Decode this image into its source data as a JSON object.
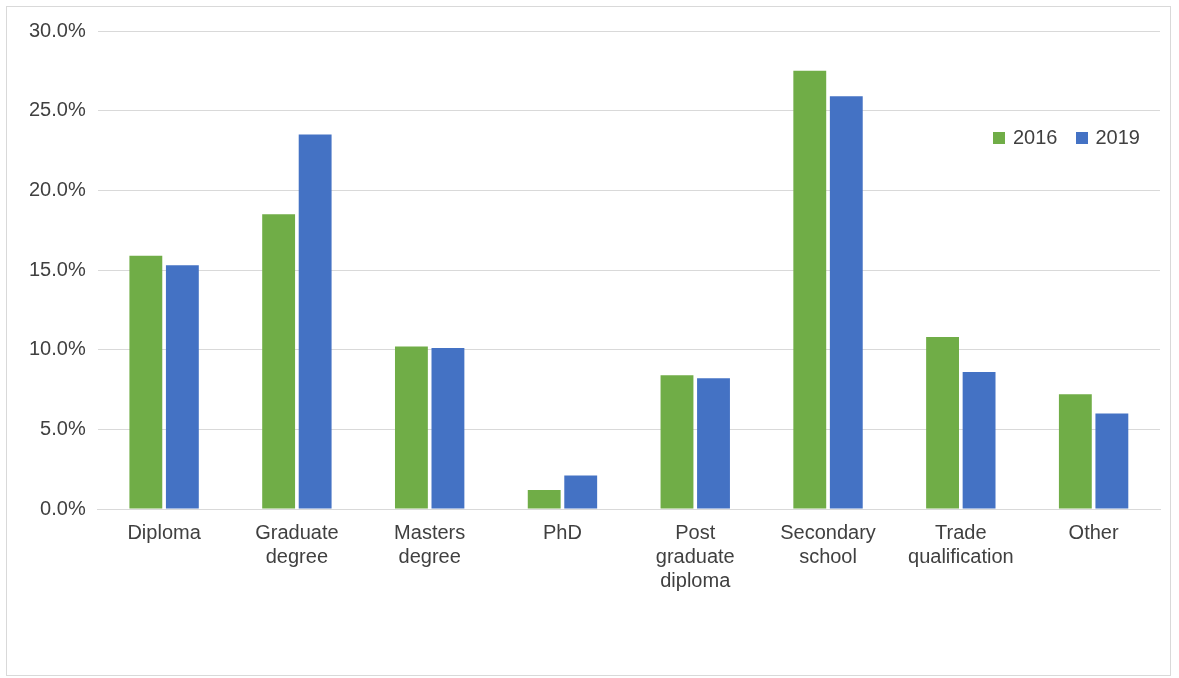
{
  "chart_data": {
    "type": "bar",
    "categories": [
      "Diploma",
      "Graduate degree",
      "Masters degree",
      "PhD",
      "Post graduate diploma",
      "Secondary school",
      "Trade qualification",
      "Other"
    ],
    "series": [
      {
        "name": "2016",
        "color": "#70ad47",
        "values": [
          15.9,
          18.5,
          10.2,
          1.2,
          8.4,
          27.5,
          10.8,
          7.2
        ]
      },
      {
        "name": "2019",
        "color": "#4472c4",
        "values": [
          15.3,
          23.5,
          10.1,
          2.1,
          8.2,
          25.9,
          8.6,
          6.0
        ]
      }
    ],
    "ylim": [
      0,
      30
    ],
    "yticks": [
      {
        "value": 0,
        "label": "0.0%"
      },
      {
        "value": 5,
        "label": "5.0%"
      },
      {
        "value": 10,
        "label": "10.0%"
      },
      {
        "value": 15,
        "label": "15.0%"
      },
      {
        "value": 20,
        "label": "20.0%"
      },
      {
        "value": 25,
        "label": "25.0%"
      },
      {
        "value": 30,
        "label": "30.0%"
      }
    ],
    "grid": "y",
    "legend": "top right"
  }
}
